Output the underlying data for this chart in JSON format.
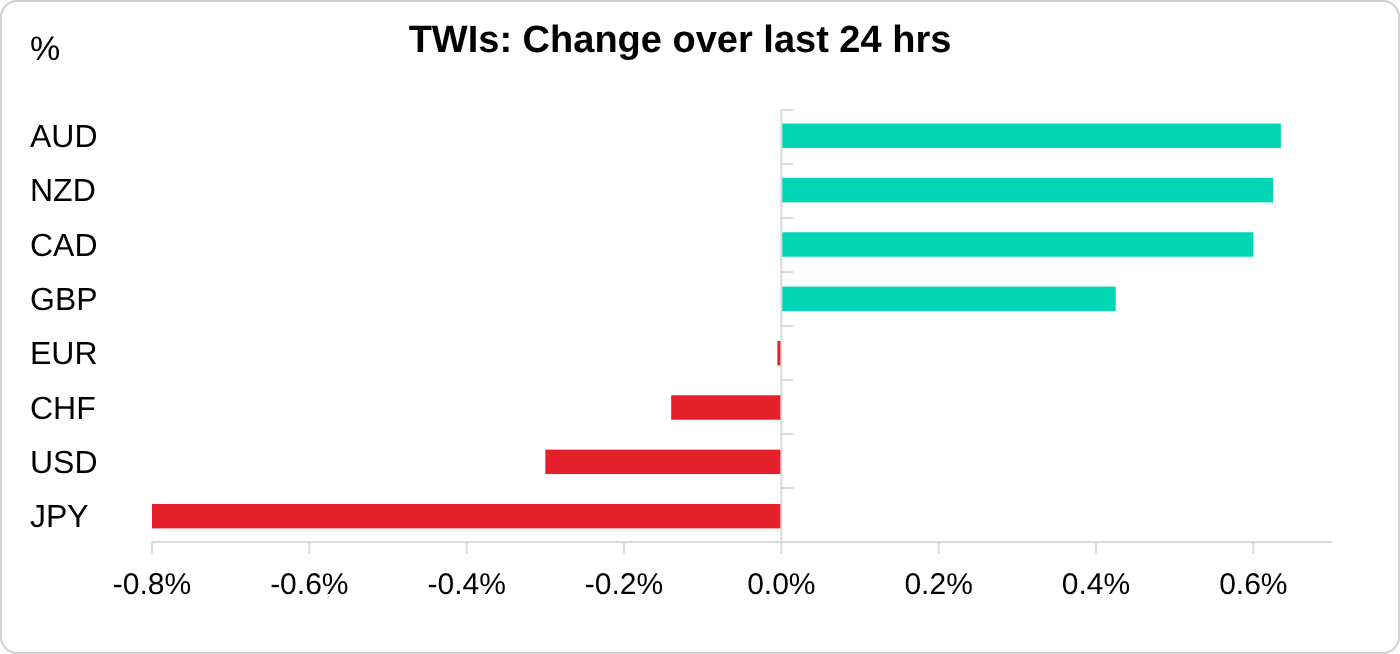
{
  "chart_data": {
    "type": "bar",
    "orientation": "horizontal",
    "title": "TWIs: Change over last 24 hrs",
    "ylabel": "%",
    "categories": [
      "AUD",
      "NZD",
      "CAD",
      "GBP",
      "EUR",
      "CHF",
      "USD",
      "JPY"
    ],
    "values": [
      0.635,
      0.625,
      0.6,
      0.425,
      -0.005,
      -0.14,
      -0.3,
      -0.8
    ],
    "colors": [
      "#00d6b4",
      "#00d6b4",
      "#00d6b4",
      "#00d6b4",
      "#e4202a",
      "#e4202a",
      "#e4202a",
      "#e4202a"
    ],
    "xlim": [
      -0.8,
      0.7
    ],
    "xticks": [
      {
        "value": -0.8,
        "label": "-0.8%"
      },
      {
        "value": -0.6,
        "label": "-0.6%"
      },
      {
        "value": -0.4,
        "label": "-0.4%"
      },
      {
        "value": -0.2,
        "label": "-0.2%"
      },
      {
        "value": 0,
        "label": "0.0%"
      },
      {
        "value": 0.2,
        "label": "0.2%"
      },
      {
        "value": 0.4,
        "label": "0.4%"
      },
      {
        "value": 0.6,
        "label": "0.6%"
      }
    ]
  }
}
